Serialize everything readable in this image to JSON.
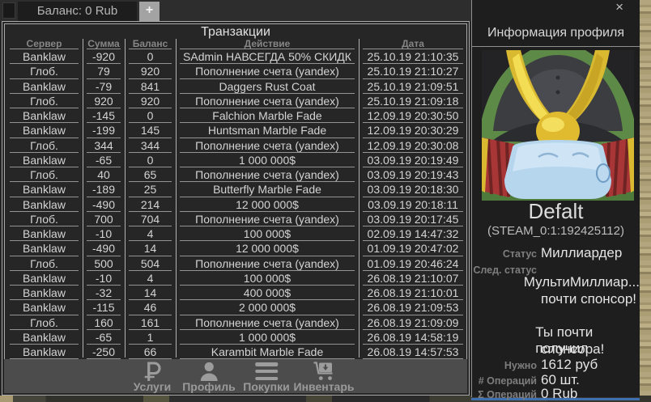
{
  "tab_bar": {
    "balance_tab_label": "Баланс: 0 Rub",
    "add_tab_glyph": "+"
  },
  "transactions": {
    "title": "Транзакции",
    "columns": [
      "Сервер",
      "Сумма",
      "Баланс",
      "Действие",
      "Дата"
    ],
    "rows": [
      {
        "server": "Banklaw",
        "amount": "-920",
        "balance": "0",
        "action": "SAdmin НАВСЕГДА 50% СКИДК",
        "date": "25.10.19 21:10:35"
      },
      {
        "server": "Глоб.",
        "amount": "79",
        "balance": "920",
        "action": "Пополнение счета (yandex)",
        "date": "25.10.19 21:10:27"
      },
      {
        "server": "Banklaw",
        "amount": "-79",
        "balance": "841",
        "action": "Daggers Rust Coat",
        "date": "25.10.19 21:09:51"
      },
      {
        "server": "Глоб.",
        "amount": "920",
        "balance": "920",
        "action": "Пополнение счета (yandex)",
        "date": "25.10.19 21:09:18"
      },
      {
        "server": "Banklaw",
        "amount": "-145",
        "balance": "0",
        "action": "Falchion Marble Fade",
        "date": "12.09.19 20:30:50"
      },
      {
        "server": "Banklaw",
        "amount": "-199",
        "balance": "145",
        "action": "Huntsman Marble Fade",
        "date": "12.09.19 20:30:29"
      },
      {
        "server": "Глоб.",
        "amount": "344",
        "balance": "344",
        "action": "Пополнение счета (yandex)",
        "date": "12.09.19 20:30:08"
      },
      {
        "server": "Banklaw",
        "amount": "-65",
        "balance": "0",
        "action": "1 000 000$",
        "date": "03.09.19 20:19:49"
      },
      {
        "server": "Глоб.",
        "amount": "40",
        "balance": "65",
        "action": "Пополнение счета (yandex)",
        "date": "03.09.19 20:19:43"
      },
      {
        "server": "Banklaw",
        "amount": "-189",
        "balance": "25",
        "action": "Butterfly Marble Fade",
        "date": "03.09.19 20:18:30"
      },
      {
        "server": "Banklaw",
        "amount": "-490",
        "balance": "214",
        "action": "12 000 000$",
        "date": "03.09.19 20:18:11"
      },
      {
        "server": "Глоб.",
        "amount": "700",
        "balance": "704",
        "action": "Пополнение счета (yandex)",
        "date": "03.09.19 20:17:45"
      },
      {
        "server": "Banklaw",
        "amount": "-10",
        "balance": "4",
        "action": "100 000$",
        "date": "02.09.19 14:47:32"
      },
      {
        "server": "Banklaw",
        "amount": "-490",
        "balance": "14",
        "action": "12 000 000$",
        "date": "01.09.19 20:47:02"
      },
      {
        "server": "Глоб.",
        "amount": "500",
        "balance": "504",
        "action": "Пополнение счета (yandex)",
        "date": "01.09.19 20:46:24"
      },
      {
        "server": "Banklaw",
        "amount": "-10",
        "balance": "4",
        "action": "100 000$",
        "date": "26.08.19 21:10:07"
      },
      {
        "server": "Banklaw",
        "amount": "-32",
        "balance": "14",
        "action": "400 000$",
        "date": "26.08.19 21:10:01"
      },
      {
        "server": "Banklaw",
        "amount": "-115",
        "balance": "46",
        "action": "2 000 000$",
        "date": "26.08.19 21:09:53"
      },
      {
        "server": "Глоб.",
        "amount": "160",
        "balance": "161",
        "action": "Пополнение счета (yandex)",
        "date": "26.08.19 21:09:09"
      },
      {
        "server": "Banklaw",
        "amount": "-65",
        "balance": "1",
        "action": "1 000 000$",
        "date": "26.08.19 14:58:19"
      },
      {
        "server": "Banklaw",
        "amount": "-250",
        "balance": "66",
        "action": "Karambit Marble Fade",
        "date": "26.08.19 14:57:53"
      }
    ]
  },
  "bottom_nav": {
    "items": [
      {
        "icon": "ruble-icon",
        "label": "Услуги"
      },
      {
        "icon": "person-icon",
        "label": "Профиль"
      },
      {
        "icon": "list-icon",
        "label": "Покупки"
      },
      {
        "icon": "cart-download-icon",
        "label": "Инвентарь"
      }
    ]
  },
  "profile": {
    "title": "Информация профиля",
    "close_glyph": "×",
    "name": "Defalt",
    "steam_id": "(STEAM_0:1:192425112)",
    "status_label": "Статус",
    "status_value": "Миллиардер",
    "next_status_label": "След. статус",
    "next_status_lines": [
      "МультиМиллиар...",
      "почти спонсор!"
    ],
    "sponsor_lines": [
      "Ты почти получил",
      "спонсора!"
    ],
    "needed_label": "Нужно",
    "needed_value": "1612 руб",
    "ops_count_label": "# Операций",
    "ops_count_value": "60 шт.",
    "ops_sum_label": "Σ Операций",
    "ops_sum_value": "0 Rub"
  },
  "colors": {
    "window_bg": "#262626",
    "panel_bg": "#1e1e1e",
    "nav_bg": "#4c4c4c",
    "border_light": "#a9a9a9",
    "text_light": "#d4d4d4",
    "text_gray": "#868686",
    "avatar_gold": "#d9b92f",
    "avatar_red": "#a83636",
    "avatar_blue": "#bcd9ee",
    "avatar_green": "#5d8a47",
    "sand": "#b3a67e"
  }
}
